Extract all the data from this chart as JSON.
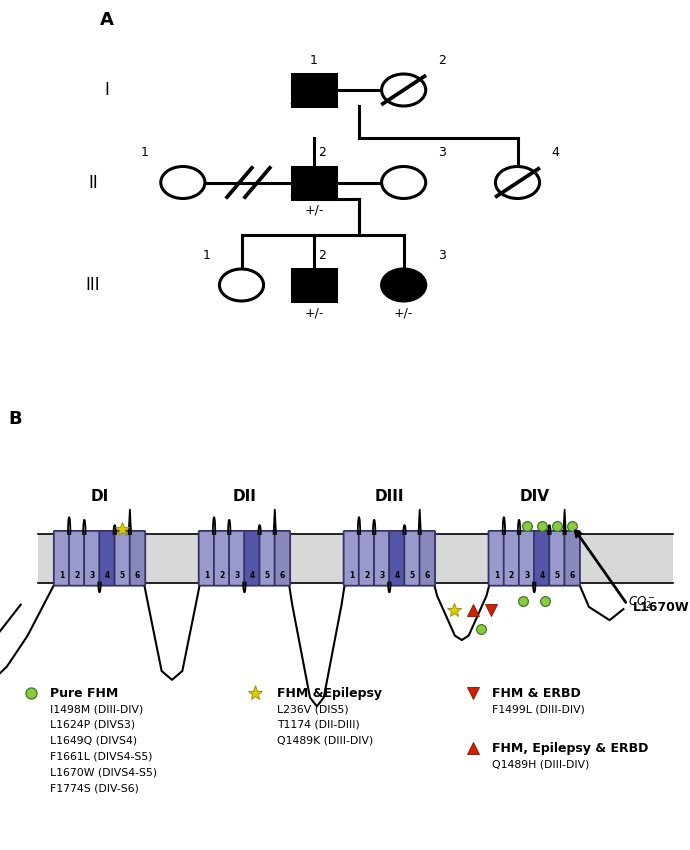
{
  "background_color": "#ffffff",
  "membrane_color": "#d8d8d8",
  "helix_color_normal": "#9999cc",
  "helix_color_s4": "#6666aa",
  "helix_color_s6": "#8888bb",
  "helix_edge_color": "#444466",
  "domain_labels": [
    "DI",
    "DII",
    "DIII",
    "DIV"
  ],
  "segment_labels": [
    "1",
    "2",
    "3",
    "4",
    "5",
    "6"
  ],
  "green_circle_color": "#88cc44",
  "green_circle_edge": "#447722",
  "yellow_star_color": "#ddcc00",
  "yellow_star_edge": "#998800",
  "red_marker_color": "#cc2200",
  "red_marker_edge": "#881100",
  "legend_sublists": [
    [
      "I1498M (DIII-DIV)",
      "L1624P (DIVS3)",
      "L1649Q (DIVS4)",
      "F1661L (DIVS4-S5)",
      "L1670W (DIVS4-S5)",
      "F1774S (DIV-S6)"
    ],
    [
      "L236V (DIS5)",
      "T1174 (DII-DIII)",
      "Q1489K (DIII-DIV)"
    ],
    [
      "F1499L (DIII-DIV)"
    ],
    [
      "Q1489H (DIII-DIV)"
    ]
  ],
  "legend_labels": [
    "Pure FHM",
    "FHM &Epilepsy",
    "FHM & ERBD",
    "FHM, Epilepsy & ERBD"
  ]
}
